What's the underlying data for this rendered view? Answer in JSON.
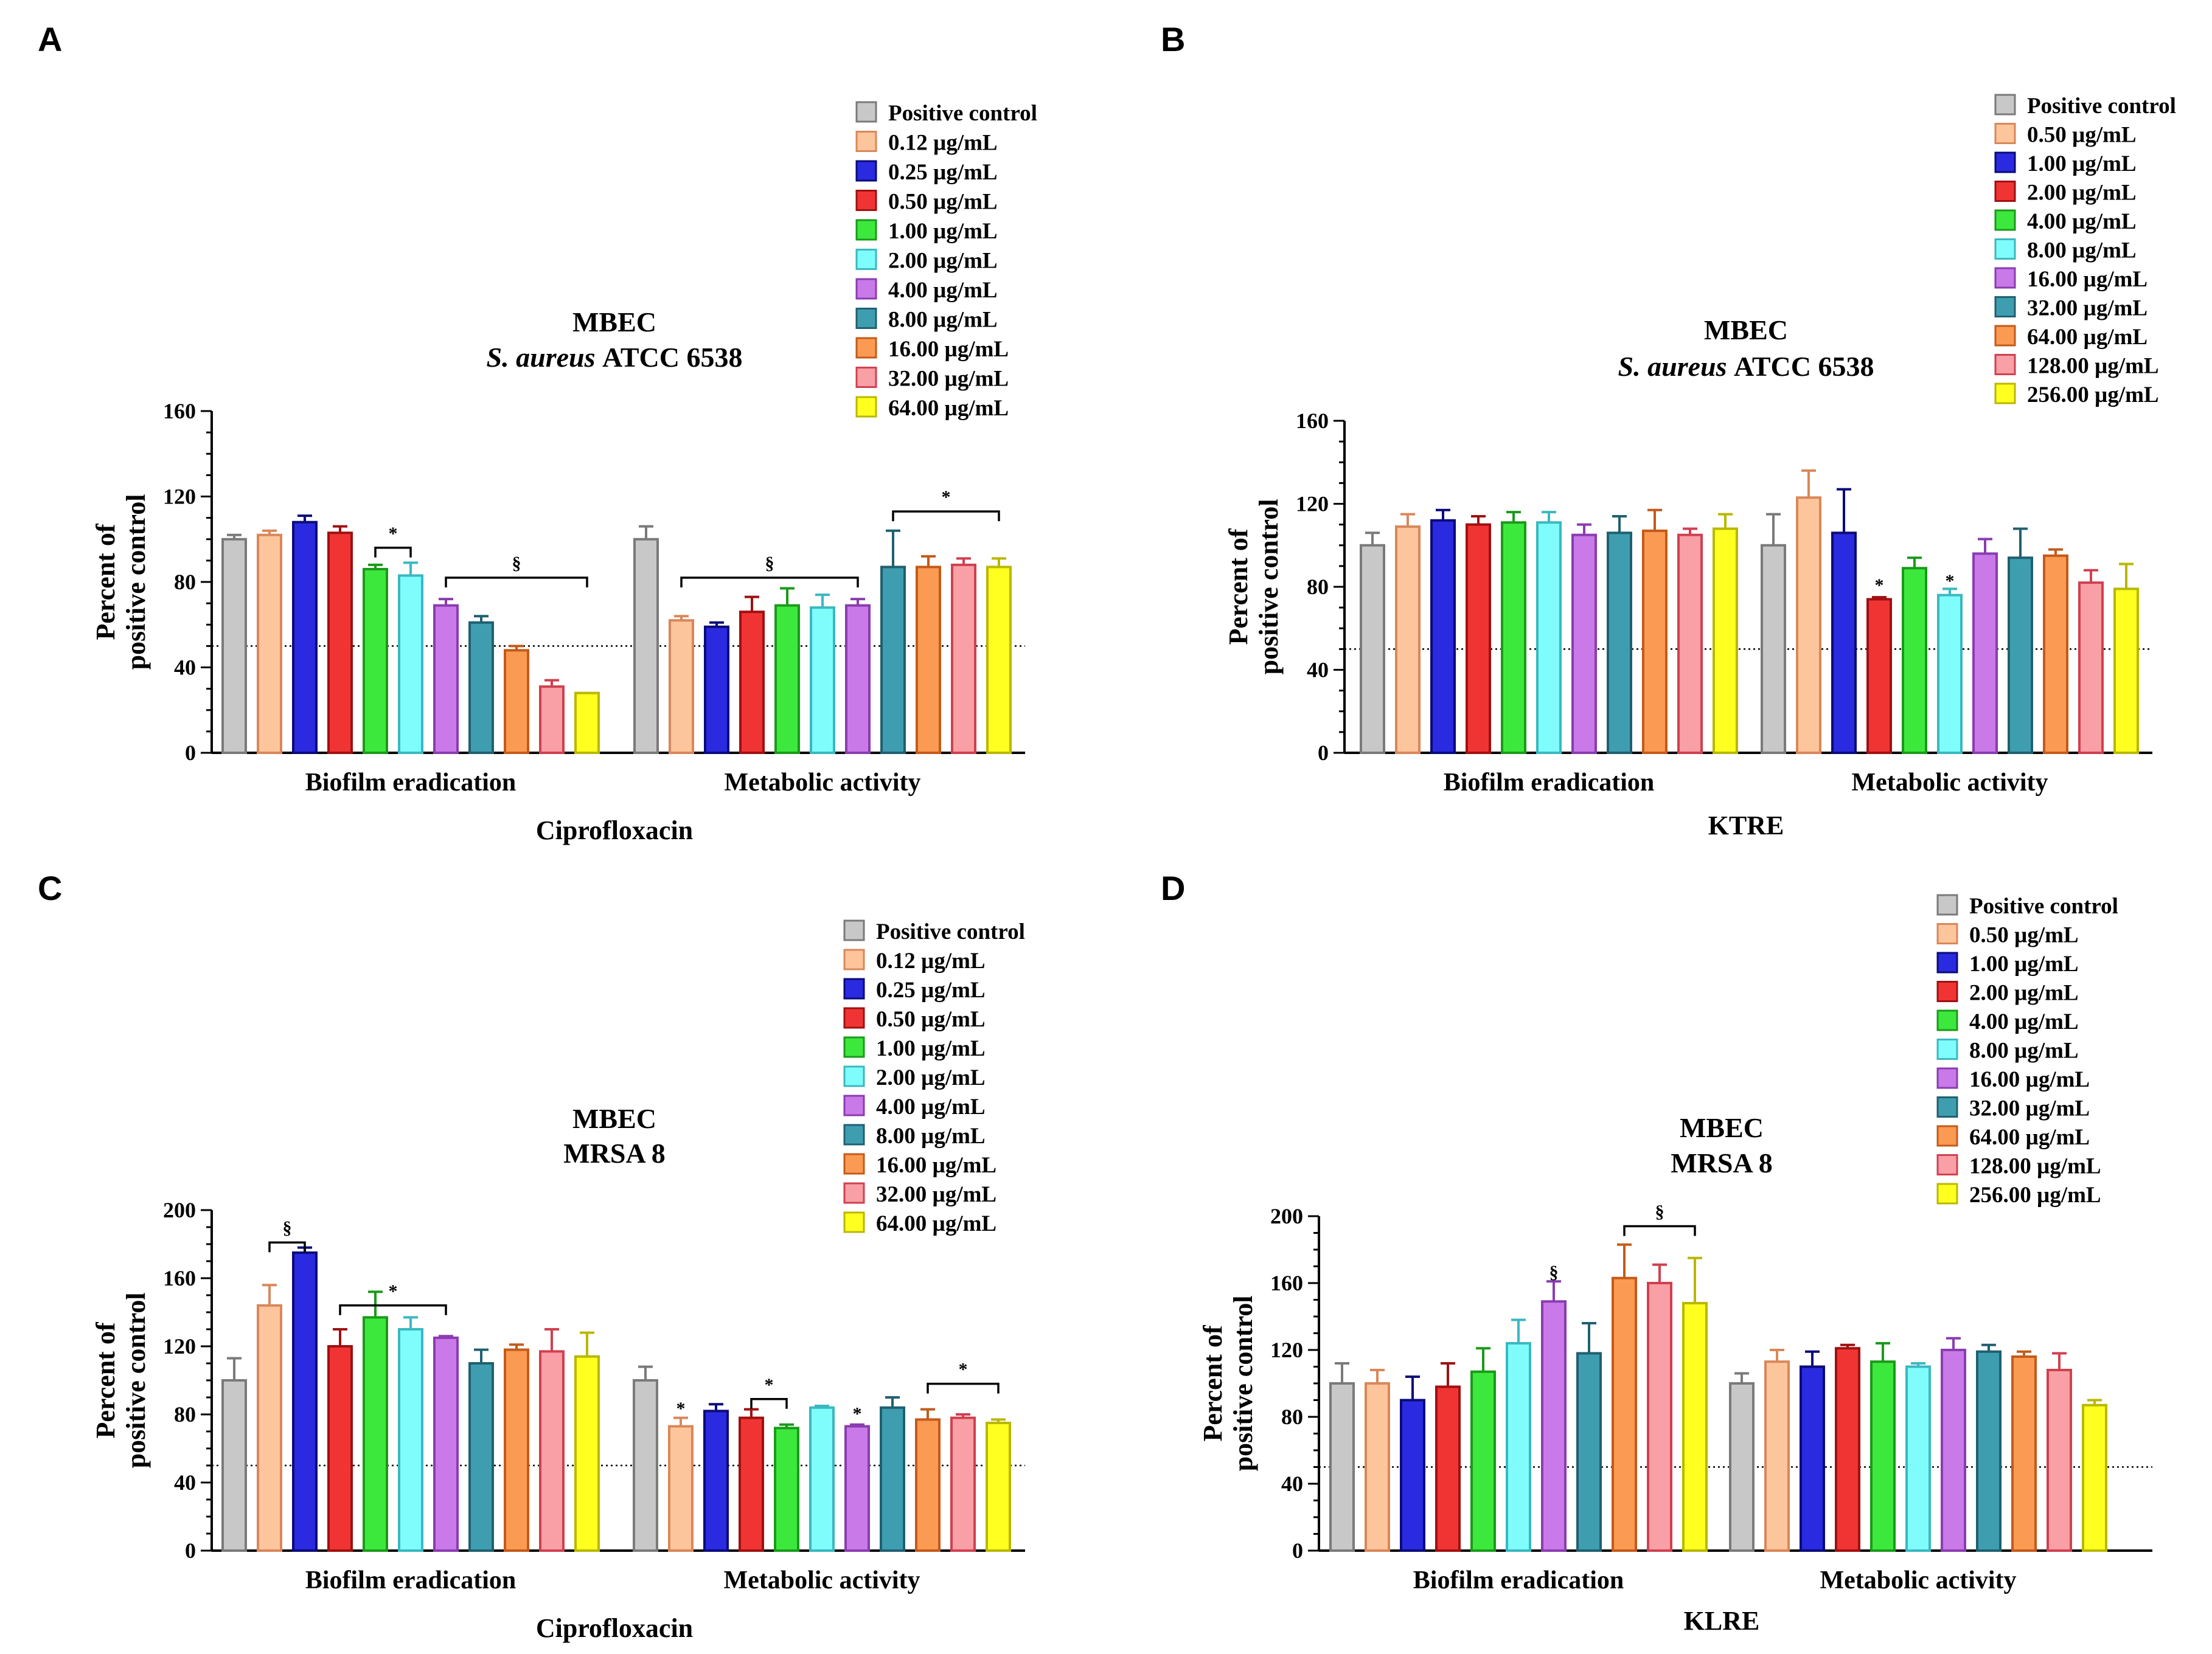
{
  "chart_data": [
    {
      "panel": "A",
      "type": "bar",
      "title": "MBEC",
      "subtitle_italic": "S. aureus",
      "subtitle_rest": "ATCC 6538",
      "xlabel": "Ciprofloxacin",
      "ylabel": [
        "Percent of",
        "positive control"
      ],
      "ylim": [
        0,
        160
      ],
      "yticks": [
        0,
        40,
        80,
        120,
        160
      ],
      "threshold": 50,
      "groups": [
        "Biofilm eradication",
        "Metabolic activity"
      ],
      "series": [
        {
          "name": "Positive control",
          "color": "#c8c8c8",
          "edge": "#7a7a7a",
          "values": [
            100,
            100
          ],
          "errors": [
            2,
            6
          ]
        },
        {
          "name": "0.12 µg/mL",
          "color": "#fdc59b",
          "edge": "#d9875a",
          "values": [
            102,
            62
          ],
          "errors": [
            2,
            2
          ]
        },
        {
          "name": "0.25 µg/mL",
          "color": "#2a2ae0",
          "edge": "#0b0b7a",
          "values": [
            108,
            59
          ],
          "errors": [
            3,
            2
          ]
        },
        {
          "name": "0.50 µg/mL",
          "color": "#f03434",
          "edge": "#a01010",
          "values": [
            103,
            66
          ],
          "errors": [
            3,
            7
          ]
        },
        {
          "name": "1.00 µg/mL",
          "color": "#3de83d",
          "edge": "#1a9a1a",
          "values": [
            86,
            69
          ],
          "errors": [
            2,
            8
          ]
        },
        {
          "name": "2.00 µg/mL",
          "color": "#7ffcfc",
          "edge": "#3ab8c0",
          "values": [
            83,
            68
          ],
          "errors": [
            6,
            6
          ]
        },
        {
          "name": "4.00 µg/mL",
          "color": "#c97ae8",
          "edge": "#8a3cb0",
          "values": [
            69,
            69
          ],
          "errors": [
            3,
            3
          ]
        },
        {
          "name": "8.00 µg/mL",
          "color": "#3e9eb0",
          "edge": "#1f6070",
          "values": [
            61,
            87
          ],
          "errors": [
            3,
            17
          ]
        },
        {
          "name": "16.00 µg/mL",
          "color": "#fb9a52",
          "edge": "#c45a1a",
          "values": [
            48,
            87
          ],
          "errors": [
            2,
            5
          ]
        },
        {
          "name": "32.00 µg/mL",
          "color": "#f8a0a6",
          "edge": "#d04050",
          "values": [
            31,
            88
          ],
          "errors": [
            3,
            3
          ]
        },
        {
          "name": "64.00 µg/mL",
          "color": "#ffff20",
          "edge": "#b8b800",
          "values": [
            28,
            87
          ],
          "errors": [
            0,
            4
          ]
        }
      ],
      "annotations": [
        {
          "text": "*",
          "group": 0,
          "from": 4,
          "to": 5,
          "level": 96
        },
        {
          "text": "§",
          "group": 0,
          "from": 6,
          "to": 10,
          "level": 82
        },
        {
          "text": "§",
          "group": 1,
          "from": 1,
          "to": 6,
          "level": 82
        },
        {
          "text": "*",
          "group": 1,
          "from": 7,
          "to": 10,
          "level": 113
        }
      ]
    },
    {
      "panel": "B",
      "type": "bar",
      "title": "MBEC",
      "subtitle_italic": "S. aureus",
      "subtitle_rest": "ATCC 6538",
      "xlabel": "KTRE",
      "ylabel": [
        "Percent of",
        "positive control"
      ],
      "ylim": [
        0,
        160
      ],
      "yticks": [
        0,
        40,
        80,
        120,
        160
      ],
      "threshold": 50,
      "groups": [
        "Biofilm eradication",
        "Metabolic activity"
      ],
      "series": [
        {
          "name": "Positive control",
          "color": "#c8c8c8",
          "edge": "#7a7a7a",
          "values": [
            100,
            100
          ],
          "errors": [
            6,
            15
          ]
        },
        {
          "name": "0.50 µg/mL",
          "color": "#fdc59b",
          "edge": "#d9875a",
          "values": [
            109,
            123
          ],
          "errors": [
            6,
            13
          ]
        },
        {
          "name": "1.00 µg/mL",
          "color": "#2a2ae0",
          "edge": "#0b0b7a",
          "values": [
            112,
            106
          ],
          "errors": [
            5,
            21
          ]
        },
        {
          "name": "2.00 µg/mL",
          "color": "#f03434",
          "edge": "#a01010",
          "values": [
            110,
            74
          ],
          "errors": [
            4,
            1
          ]
        },
        {
          "name": "4.00 µg/mL",
          "color": "#3de83d",
          "edge": "#1a9a1a",
          "values": [
            111,
            89
          ],
          "errors": [
            5,
            5
          ]
        },
        {
          "name": "8.00 µg/mL",
          "color": "#7ffcfc",
          "edge": "#3ab8c0",
          "values": [
            111,
            76
          ],
          "errors": [
            5,
            3
          ]
        },
        {
          "name": "16.00 µg/mL",
          "color": "#c97ae8",
          "edge": "#8a3cb0",
          "values": [
            105,
            96
          ],
          "errors": [
            5,
            7
          ]
        },
        {
          "name": "32.00 µg/mL",
          "color": "#3e9eb0",
          "edge": "#1f6070",
          "values": [
            106,
            94
          ],
          "errors": [
            8,
            14
          ]
        },
        {
          "name": "64.00 µg/mL",
          "color": "#fb9a52",
          "edge": "#c45a1a",
          "values": [
            107,
            95
          ],
          "errors": [
            10,
            3
          ]
        },
        {
          "name": "128.00 µg/mL",
          "color": "#f8a0a6",
          "edge": "#d04050",
          "values": [
            105,
            82
          ],
          "errors": [
            3,
            6
          ]
        },
        {
          "name": "256.00 µg/mL",
          "color": "#ffff20",
          "edge": "#b8b800",
          "values": [
            108,
            79
          ],
          "errors": [
            7,
            12
          ]
        }
      ],
      "annotations": [
        {
          "text": "*",
          "group": 1,
          "from": 3,
          "to": 3,
          "level": 78,
          "marker": true
        },
        {
          "text": "*",
          "group": 1,
          "from": 5,
          "to": 5,
          "level": 80,
          "marker": true
        }
      ]
    },
    {
      "panel": "C",
      "type": "bar",
      "title": "MBEC",
      "subtitle_italic": "",
      "subtitle_rest": "MRSA 8",
      "xlabel": "Ciprofloxacin",
      "ylabel": [
        "Percent of",
        "positive control"
      ],
      "ylim": [
        0,
        200
      ],
      "yticks": [
        0,
        40,
        80,
        120,
        160,
        200
      ],
      "threshold": 50,
      "groups": [
        "Biofilm eradication",
        "Metabolic activity"
      ],
      "series": [
        {
          "name": "Positive control",
          "color": "#c8c8c8",
          "edge": "#7a7a7a",
          "values": [
            100,
            100
          ],
          "errors": [
            13,
            8
          ]
        },
        {
          "name": "0.12 µg/mL",
          "color": "#fdc59b",
          "edge": "#d9875a",
          "values": [
            144,
            73
          ],
          "errors": [
            12,
            5
          ]
        },
        {
          "name": "0.25 µg/mL",
          "color": "#2a2ae0",
          "edge": "#0b0b7a",
          "values": [
            175,
            82
          ],
          "errors": [
            3,
            4
          ]
        },
        {
          "name": "0.50 µg/mL",
          "color": "#f03434",
          "edge": "#a01010",
          "values": [
            120,
            78
          ],
          "errors": [
            10,
            5
          ]
        },
        {
          "name": "1.00 µg/mL",
          "color": "#3de83d",
          "edge": "#1a9a1a",
          "values": [
            137,
            72
          ],
          "errors": [
            15,
            2
          ]
        },
        {
          "name": "2.00 µg/mL",
          "color": "#7ffcfc",
          "edge": "#3ab8c0",
          "values": [
            130,
            84
          ],
          "errors": [
            7,
            1
          ]
        },
        {
          "name": "4.00 µg/mL",
          "color": "#c97ae8",
          "edge": "#8a3cb0",
          "values": [
            125,
            73
          ],
          "errors": [
            1,
            1
          ]
        },
        {
          "name": "8.00 µg/mL",
          "color": "#3e9eb0",
          "edge": "#1f6070",
          "values": [
            110,
            84
          ],
          "errors": [
            8,
            6
          ]
        },
        {
          "name": "16.00 µg/mL",
          "color": "#fb9a52",
          "edge": "#c45a1a",
          "values": [
            118,
            77
          ],
          "errors": [
            3,
            6
          ]
        },
        {
          "name": "32.00 µg/mL",
          "color": "#f8a0a6",
          "edge": "#d04050",
          "values": [
            117,
            78
          ],
          "errors": [
            13,
            2
          ]
        },
        {
          "name": "64.00 µg/mL",
          "color": "#ffff20",
          "edge": "#b8b800",
          "values": [
            114,
            75
          ],
          "errors": [
            14,
            2
          ]
        }
      ],
      "annotations": [
        {
          "text": "§",
          "group": 0,
          "from": 1,
          "to": 2,
          "level": 181
        },
        {
          "text": "*",
          "group": 0,
          "from": 3,
          "to": 6,
          "level": 144
        },
        {
          "text": "*",
          "group": 1,
          "from": 1,
          "to": 1,
          "level": 80,
          "marker": true
        },
        {
          "text": "*",
          "group": 1,
          "from": 3,
          "to": 4,
          "level": 89
        },
        {
          "text": "*",
          "group": 1,
          "from": 6,
          "to": 6,
          "level": 77,
          "marker": true
        },
        {
          "text": "*",
          "group": 1,
          "from": 8,
          "to": 10,
          "level": 98
        }
      ]
    },
    {
      "panel": "D",
      "type": "bar",
      "title": "MBEC",
      "subtitle_italic": "",
      "subtitle_rest": "MRSA 8",
      "xlabel": "KLRE",
      "ylabel": [
        "Percent of",
        "positive control"
      ],
      "ylim": [
        0,
        200
      ],
      "yticks": [
        0,
        40,
        80,
        120,
        160,
        200
      ],
      "threshold": 50,
      "groups": [
        "Biofilm eradication",
        "Metabolic activity"
      ],
      "series": [
        {
          "name": "Positive control",
          "color": "#c8c8c8",
          "edge": "#7a7a7a",
          "values": [
            100,
            100
          ],
          "errors": [
            12,
            6
          ]
        },
        {
          "name": "0.50 µg/mL",
          "color": "#fdc59b",
          "edge": "#d9875a",
          "values": [
            100,
            113
          ],
          "errors": [
            8,
            7
          ]
        },
        {
          "name": "1.00 µg/mL",
          "color": "#2a2ae0",
          "edge": "#0b0b7a",
          "values": [
            90,
            110
          ],
          "errors": [
            14,
            9
          ]
        },
        {
          "name": "2.00 µg/mL",
          "color": "#f03434",
          "edge": "#a01010",
          "values": [
            98,
            121
          ],
          "errors": [
            14,
            2
          ]
        },
        {
          "name": "4.00 µg/mL",
          "color": "#3de83d",
          "edge": "#1a9a1a",
          "values": [
            107,
            113
          ],
          "errors": [
            14,
            11
          ]
        },
        {
          "name": "8.00 µg/mL",
          "color": "#7ffcfc",
          "edge": "#3ab8c0",
          "values": [
            124,
            110
          ],
          "errors": [
            14,
            2
          ]
        },
        {
          "name": "16.00 µg/mL",
          "color": "#c97ae8",
          "edge": "#8a3cb0",
          "values": [
            149,
            120
          ],
          "errors": [
            12,
            7
          ]
        },
        {
          "name": "32.00 µg/mL",
          "color": "#3e9eb0",
          "edge": "#1f6070",
          "values": [
            118,
            119
          ],
          "errors": [
            18,
            4
          ]
        },
        {
          "name": "64.00 µg/mL",
          "color": "#fb9a52",
          "edge": "#c45a1a",
          "values": [
            163,
            116
          ],
          "errors": [
            20,
            3
          ]
        },
        {
          "name": "128.00 µg/mL",
          "color": "#f8a0a6",
          "edge": "#d04050",
          "values": [
            160,
            108
          ],
          "errors": [
            11,
            10
          ]
        },
        {
          "name": "256.00 µg/mL",
          "color": "#ffff20",
          "edge": "#b8b800",
          "values": [
            148,
            87
          ],
          "errors": [
            27,
            3
          ]
        }
      ],
      "annotations": [
        {
          "text": "§",
          "group": 0,
          "from": 6,
          "to": 6,
          "level": 163,
          "marker": true
        },
        {
          "text": "§",
          "group": 0,
          "from": 8,
          "to": 10,
          "level": 194
        }
      ]
    }
  ]
}
